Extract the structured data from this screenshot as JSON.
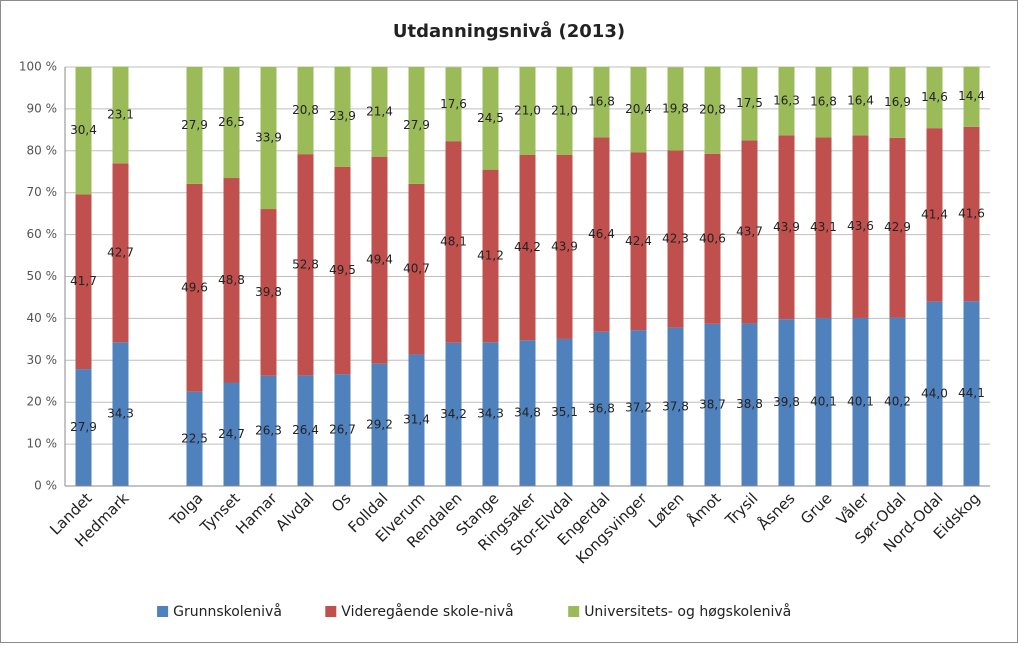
{
  "chart_data": {
    "type": "bar",
    "stacked": true,
    "title": "Utdanningsnivå (2013)",
    "categories": [
      "Landet",
      "Hedmark",
      null,
      "Tolga",
      "Tynset",
      "Hamar",
      "Alvdal",
      "Os",
      "Folldal",
      "Elverum",
      "Rendalen",
      "Stange",
      "Ringsaker",
      "Stor-Elvdal",
      "Engerdal",
      "Kongsvinger",
      "Løten",
      "Åmot",
      "Trysil",
      "Åsnes",
      "Grue",
      "Våler",
      "Sør-Odal",
      "Nord-Odal",
      "Eidskog"
    ],
    "series": [
      {
        "name": "Grunnskolenivå",
        "color": "#4f81bd",
        "values": [
          27.9,
          34.3,
          null,
          22.5,
          24.7,
          26.3,
          26.4,
          26.7,
          29.2,
          31.4,
          34.2,
          34.3,
          34.8,
          35.1,
          36.8,
          37.2,
          37.8,
          38.7,
          38.8,
          39.8,
          40.1,
          40.1,
          40.2,
          44.0,
          44.1
        ],
        "value_labels": [
          "27,9",
          "34,3",
          null,
          "22,5",
          "24,7",
          "26,3",
          "26,4",
          "26,7",
          "29,2",
          "31,4",
          "34,2",
          "34,3",
          "34,8",
          "35,1",
          "36,8",
          "37,2",
          "37,8",
          "38,7",
          "38,8",
          "39,8",
          "40,1",
          "40,1",
          "40,2",
          "44,0",
          "44,1"
        ]
      },
      {
        "name": "Videregående skole-nivå",
        "color": "#c0504d",
        "values": [
          41.7,
          42.7,
          null,
          49.6,
          48.8,
          39.8,
          52.8,
          49.5,
          49.4,
          40.7,
          48.1,
          41.2,
          44.2,
          43.9,
          46.4,
          42.4,
          42.3,
          40.6,
          43.7,
          43.9,
          43.1,
          43.6,
          42.9,
          41.4,
          41.6
        ],
        "value_labels": [
          "41,7",
          "42,7",
          null,
          "49,6",
          "48,8",
          "39,8",
          "52,8",
          "49,5",
          "49,4",
          "40,7",
          "48,1",
          "41,2",
          "44,2",
          "43,9",
          "46,4",
          "42,4",
          "42,3",
          "40,6",
          "43,7",
          "43,9",
          "43,1",
          "43,6",
          "42,9",
          "41,4",
          "41,6"
        ]
      },
      {
        "name": "Universitets- og høgskolenivå",
        "color": "#9bbb59",
        "values": [
          30.4,
          23.1,
          null,
          27.9,
          26.5,
          33.9,
          20.8,
          23.9,
          21.4,
          27.9,
          17.6,
          24.5,
          21.0,
          21.0,
          16.8,
          20.4,
          19.8,
          20.8,
          17.5,
          16.3,
          16.8,
          16.4,
          16.9,
          14.6,
          14.4
        ],
        "value_labels": [
          "30,4",
          "23,1",
          null,
          "27,9",
          "26,5",
          "33,9",
          "20,8",
          "23,9",
          "21,4",
          "27,9",
          "17,6",
          "24,5",
          "21,0",
          "21,0",
          "16,8",
          "20,4",
          "19,8",
          "20,8",
          "17,5",
          "16,3",
          "16,8",
          "16,4",
          "16,9",
          "14,6",
          "14,4"
        ]
      }
    ],
    "ylim": [
      0,
      100
    ],
    "yticks": [
      {
        "value": 0,
        "label": "0 %"
      },
      {
        "value": 10,
        "label": "10 %"
      },
      {
        "value": 20,
        "label": "20 %"
      },
      {
        "value": 30,
        "label": "30 %"
      },
      {
        "value": 40,
        "label": "40 %"
      },
      {
        "value": 50,
        "label": "50 %"
      },
      {
        "value": 60,
        "label": "60 %"
      },
      {
        "value": 70,
        "label": "70 %"
      },
      {
        "value": 80,
        "label": "80 %"
      },
      {
        "value": 90,
        "label": "90 %"
      },
      {
        "value": 100,
        "label": "100 %"
      }
    ],
    "grid": true,
    "legend": "bottom"
  }
}
